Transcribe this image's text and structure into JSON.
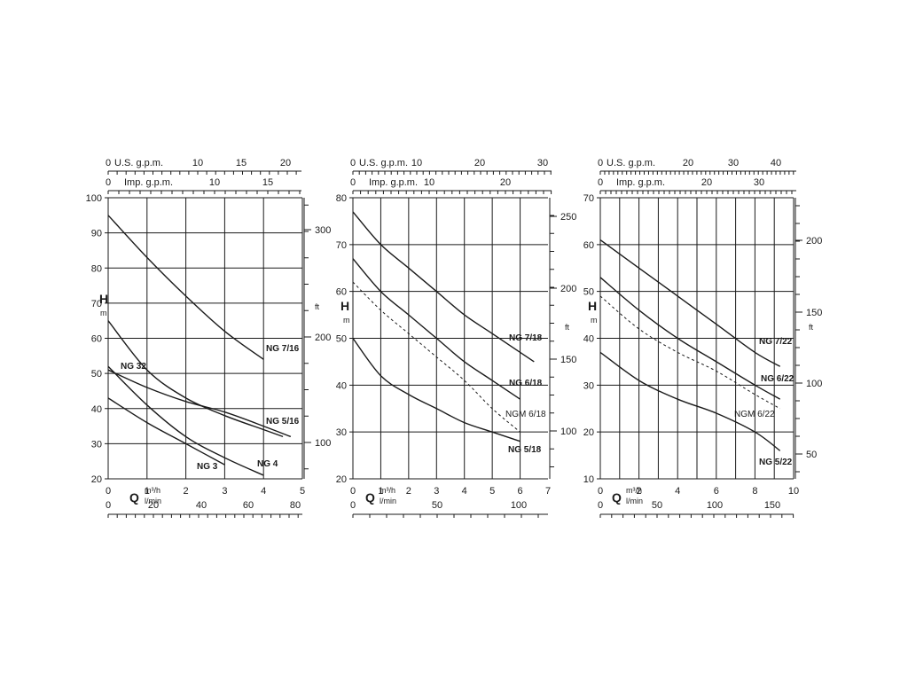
{
  "chart_data": [
    {
      "type": "line",
      "labels": {
        "h": "H",
        "h_unit": "m",
        "ft": "ft",
        "q": "Q",
        "m3h": "m³/h",
        "lmin": "l/min",
        "usgpm": "U.S. g.p.m.",
        "impgpm": "Imp. g.p.m."
      },
      "xlim": [
        0,
        5
      ],
      "ylim": [
        20,
        100
      ],
      "x_ticks": [
        0,
        1,
        2,
        3,
        4,
        5
      ],
      "y_ticks": [
        20,
        30,
        40,
        50,
        60,
        70,
        80,
        90,
        100
      ],
      "ft_ticks": [
        100,
        200,
        300
      ],
      "lmin_ticks": [
        0,
        20,
        40,
        60,
        80
      ],
      "usgpm_ticks": [
        0,
        10,
        15,
        20
      ],
      "impgpm_ticks": [
        0,
        10,
        15
      ],
      "series": [
        {
          "name": "NG 7/16",
          "dashed": false,
          "x": [
            0,
            1,
            2,
            3,
            4
          ],
          "y": [
            95,
            83,
            72,
            62,
            54
          ]
        },
        {
          "name": "NG 5/16",
          "dashed": false,
          "x": [
            0,
            1,
            2,
            3,
            4,
            4.5
          ],
          "y": [
            65,
            51,
            43,
            38,
            34,
            32
          ]
        },
        {
          "name": "NG 32",
          "dashed": false,
          "x": [
            0,
            1,
            2,
            3,
            4,
            4.7
          ],
          "y": [
            51,
            46,
            42,
            39,
            35,
            32
          ]
        },
        {
          "name": "NG 4",
          "dashed": false,
          "x": [
            0,
            1,
            2,
            3,
            4
          ],
          "y": [
            52,
            41,
            32,
            26,
            21
          ]
        },
        {
          "name": "NG 3",
          "dashed": false,
          "x": [
            0,
            1,
            2,
            3
          ],
          "y": [
            43,
            36,
            30,
            24
          ]
        }
      ]
    },
    {
      "type": "line",
      "labels": {
        "h": "H",
        "h_unit": "m",
        "ft": "ft",
        "q": "Q",
        "m3h": "m³/h",
        "lmin": "l/min",
        "usgpm": "U.S. g.p.m.",
        "impgpm": "Imp. g.p.m."
      },
      "xlim": [
        0,
        7
      ],
      "ylim": [
        20,
        80
      ],
      "x_ticks": [
        0,
        1,
        2,
        3,
        4,
        5,
        6,
        7
      ],
      "y_ticks": [
        20,
        30,
        40,
        50,
        60,
        70,
        80
      ],
      "ft_ticks": [
        100,
        150,
        200,
        250
      ],
      "lmin_ticks": [
        0,
        50,
        100
      ],
      "usgpm_ticks": [
        0,
        10,
        20,
        30
      ],
      "impgpm_ticks": [
        0,
        10,
        20
      ],
      "series": [
        {
          "name": "NG 7/18",
          "dashed": false,
          "x": [
            0,
            1,
            2,
            3,
            4,
            5,
            6.5
          ],
          "y": [
            77,
            70,
            65,
            60,
            55,
            51,
            45
          ]
        },
        {
          "name": "NG 6/18",
          "dashed": false,
          "x": [
            0,
            1,
            2,
            3,
            4,
            5,
            6
          ],
          "y": [
            67,
            60,
            55,
            50,
            45,
            41,
            37
          ]
        },
        {
          "name": "NGM 6/18",
          "dashed": true,
          "x": [
            0,
            1,
            2,
            3,
            4,
            5,
            6
          ],
          "y": [
            62,
            56,
            51,
            46,
            41,
            35,
            30
          ]
        },
        {
          "name": "NG 5/18",
          "dashed": false,
          "x": [
            0,
            1,
            2,
            3,
            4,
            5,
            6
          ],
          "y": [
            50,
            42,
            38,
            35,
            32,
            30,
            28
          ]
        }
      ]
    },
    {
      "type": "line",
      "labels": {
        "h": "H",
        "h_unit": "m",
        "ft": "ft",
        "q": "Q",
        "m3h": "m³/h",
        "lmin": "l/min",
        "usgpm": "U.S. g.p.m.",
        "impgpm": "Imp. g.p.m."
      },
      "xlim": [
        0,
        10
      ],
      "ylim": [
        10,
        70
      ],
      "x_ticks": [
        0,
        2,
        4,
        6,
        8,
        10
      ],
      "y_ticks": [
        10,
        20,
        30,
        40,
        50,
        60,
        70
      ],
      "ft_ticks": [
        50,
        100,
        150,
        200
      ],
      "lmin_ticks": [
        0,
        50,
        100,
        150
      ],
      "usgpm_ticks": [
        0,
        20,
        30,
        40
      ],
      "impgpm_ticks": [
        0,
        20,
        30
      ],
      "series": [
        {
          "name": "NG 7/22",
          "dashed": false,
          "x": [
            0,
            2,
            4,
            6,
            8,
            9.3
          ],
          "y": [
            61,
            55,
            49,
            43,
            37,
            34
          ]
        },
        {
          "name": "NG 6/22",
          "dashed": false,
          "x": [
            0,
            2,
            4,
            6,
            8,
            9.3
          ],
          "y": [
            53,
            46,
            40,
            35,
            30,
            27
          ]
        },
        {
          "name": "NGM 6/22",
          "dashed": true,
          "x": [
            0,
            2,
            4,
            6,
            8,
            9.3
          ],
          "y": [
            49,
            42,
            37,
            33,
            28,
            25
          ]
        },
        {
          "name": "NG 5/22",
          "dashed": false,
          "x": [
            0,
            2,
            4,
            6,
            8,
            9.3
          ],
          "y": [
            37,
            31,
            27,
            24,
            20,
            16
          ]
        }
      ]
    }
  ]
}
